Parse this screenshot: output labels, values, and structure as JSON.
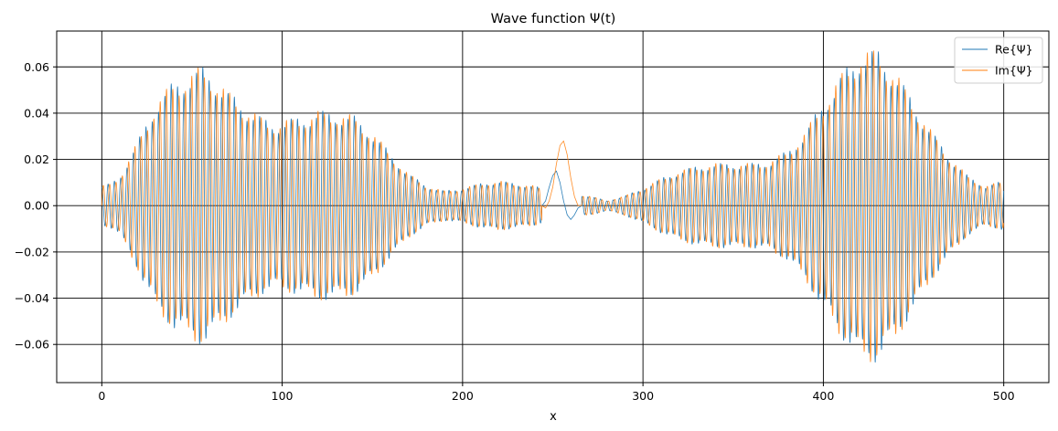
{
  "chart_data": {
    "type": "line",
    "title": "Wave function Ψ(t)",
    "xlabel": "x",
    "ylabel": "",
    "xlim": [
      -25,
      525
    ],
    "ylim": [
      -0.0765,
      0.0755
    ],
    "xticks": [
      0,
      100,
      200,
      300,
      400,
      500
    ],
    "xtick_labels": [
      "0",
      "100",
      "200",
      "300",
      "400",
      "500"
    ],
    "yticks": [
      -0.06,
      -0.04,
      -0.02,
      0.0,
      0.02,
      0.04,
      0.06
    ],
    "ytick_labels": [
      "−0.06",
      "−0.04",
      "−0.02",
      "0.00",
      "0.02",
      "0.04",
      "0.06"
    ],
    "grid": true,
    "legend_position": "upper right",
    "x_range": [
      0,
      500
    ],
    "oscillation_period": 3.5,
    "envelope": {
      "x": [
        0,
        5,
        10,
        20,
        30,
        40,
        50,
        55,
        60,
        70,
        80,
        90,
        95,
        100,
        110,
        120,
        130,
        140,
        150,
        160,
        170,
        180,
        190,
        200,
        210,
        220,
        230,
        240,
        250,
        260,
        270,
        280,
        290,
        300,
        310,
        320,
        330,
        340,
        350,
        360,
        370,
        380,
        390,
        400,
        410,
        420,
        430,
        440,
        450,
        460,
        470,
        480,
        490,
        500
      ],
      "y": [
        0.008,
        0.009,
        0.012,
        0.026,
        0.042,
        0.05,
        0.054,
        0.056,
        0.054,
        0.046,
        0.04,
        0.035,
        0.034,
        0.034,
        0.036,
        0.038,
        0.038,
        0.036,
        0.03,
        0.021,
        0.013,
        0.008,
        0.006,
        0.007,
        0.009,
        0.01,
        0.009,
        0.008,
        0.005,
        0.005,
        0.004,
        0.002,
        0.004,
        0.007,
        0.011,
        0.014,
        0.016,
        0.017,
        0.017,
        0.017,
        0.018,
        0.022,
        0.03,
        0.042,
        0.053,
        0.062,
        0.063,
        0.054,
        0.042,
        0.03,
        0.02,
        0.012,
        0.008,
        0.01
      ]
    },
    "center_pulse": {
      "x": [
        244,
        246,
        248,
        250,
        252,
        254,
        256,
        258,
        260,
        262,
        264,
        266
      ],
      "re": [
        0.0,
        0.002,
        0.008,
        0.013,
        0.015,
        0.01,
        0.002,
        -0.004,
        -0.006,
        -0.004,
        -0.001,
        0.0
      ],
      "im": [
        0.0,
        -0.001,
        0.002,
        0.008,
        0.018,
        0.026,
        0.028,
        0.022,
        0.012,
        0.004,
        0.0,
        0.0
      ]
    },
    "series": [
      {
        "name": "Re{Ψ}",
        "color": "#1f77b4",
        "phase": 0.0
      },
      {
        "name": "Im{Ψ}",
        "color": "#ff7f0e",
        "phase": 1.5708
      }
    ],
    "styles": {
      "grid_color": "#000000",
      "frame_color": "#000000",
      "line_width": 0.8
    }
  }
}
